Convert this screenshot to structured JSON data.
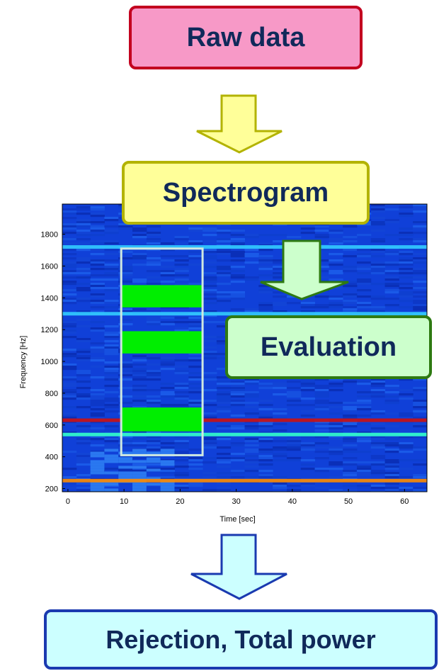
{
  "boxes": {
    "raw": "Raw data",
    "spectrogram": "Spectrogram",
    "evaluation": "Evaluation",
    "rejection": "Rejection, Total power"
  },
  "plot": {
    "xlabel": "Time [sec]",
    "ylabel": "Frequency [Hz]",
    "xticks": [
      0,
      10,
      20,
      30,
      40,
      50,
      60
    ],
    "yticks": [
      200,
      400,
      600,
      800,
      1000,
      1200,
      1400,
      1600,
      1800
    ],
    "xlim": [
      -1,
      64
    ],
    "ylim": [
      180,
      1990
    ],
    "lines": [
      {
        "freq": 250,
        "color": "#ff8c00"
      },
      {
        "freq": 540,
        "color": "#33ffcc"
      },
      {
        "freq": 630,
        "color": "#cc1111"
      },
      {
        "freq": 1300,
        "color": "#33ccff"
      },
      {
        "freq": 1720,
        "color": "#33ccff"
      }
    ],
    "selection": {
      "t_start": 9.5,
      "t_end": 24,
      "f_start": 410,
      "f_end": 1710
    },
    "bands": [
      {
        "f_start": 560,
        "f_end": 710
      },
      {
        "f_start": 1050,
        "f_end": 1190
      },
      {
        "f_start": 1340,
        "f_end": 1480
      }
    ]
  },
  "colors": {
    "background": "#1040d8",
    "arrow1": "#ffff99",
    "arrow2": "#ccffcc",
    "arrow3": "#ccffff",
    "band": "#00ee00",
    "selection_border": "#cfe8e0"
  }
}
